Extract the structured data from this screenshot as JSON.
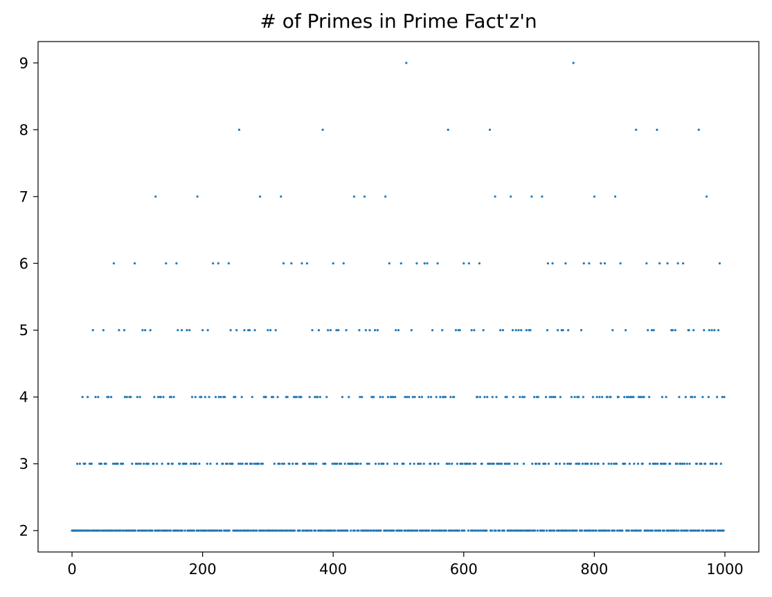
{
  "chart_data": {
    "type": "scatter",
    "title": "# of Primes in Prime Fact'z'n",
    "xlabel": "",
    "ylabel": "",
    "xlim": [
      -52,
      1052
    ],
    "ylim": [
      1.68,
      9.32
    ],
    "x_ticks": [
      0,
      200,
      400,
      600,
      800,
      1000
    ],
    "y_ticks": [
      2,
      3,
      4,
      5,
      6,
      7,
      8,
      9
    ],
    "x_tick_labels": [
      "0",
      "200",
      "400",
      "600",
      "800",
      "1000"
    ],
    "y_tick_labels": [
      "2",
      "3",
      "4",
      "5",
      "6",
      "7",
      "8",
      "9"
    ],
    "x_range": [
      0,
      999
    ],
    "rule": "for n in 0..999, y = number of prime factors of n counted with multiplicity; values of n with fewer than 2 prime factors plotted at y = 2 (the bottom row is continuous)",
    "grid": false,
    "legend": "none",
    "marker_color": "#1f77b4"
  }
}
